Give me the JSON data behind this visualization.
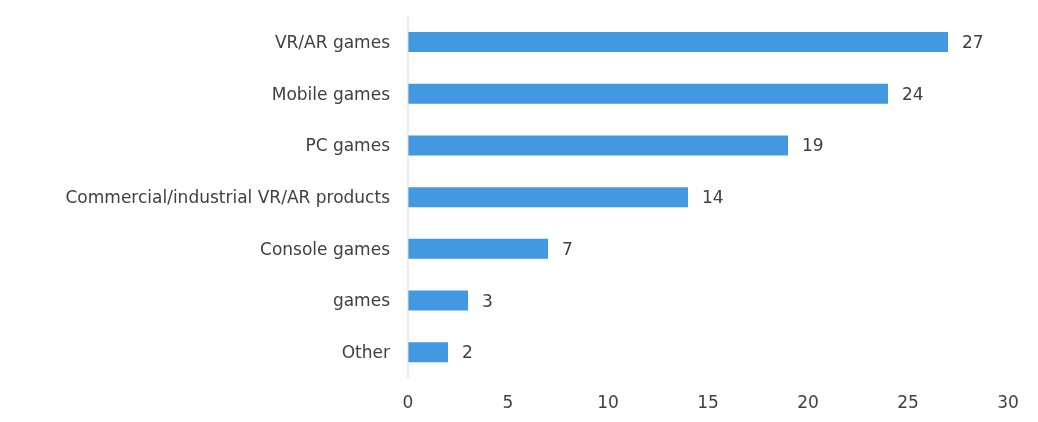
{
  "chart_data": {
    "type": "bar",
    "orientation": "horizontal",
    "categories": [
      "VR/AR games",
      "Mobile games",
      "PC games",
      "Commercial/industrial VR/AR products",
      "Console games",
      "games",
      "Other"
    ],
    "values": [
      27,
      24,
      19,
      14,
      7,
      3,
      2
    ],
    "color": "#4299e1",
    "xlim": [
      0,
      30
    ],
    "xticks": [
      0,
      5,
      10,
      15,
      20,
      25,
      30
    ],
    "data_labels": true
  }
}
